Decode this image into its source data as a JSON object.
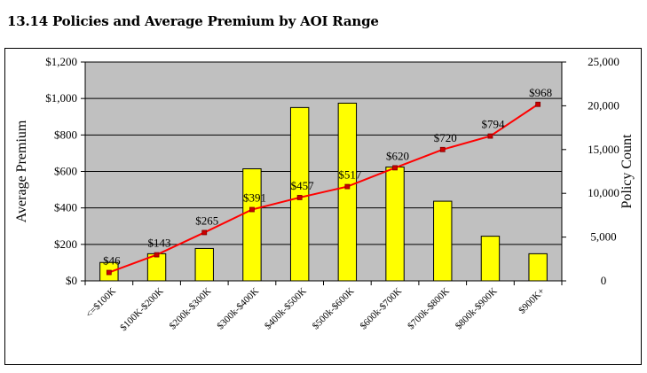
{
  "chart_data": {
    "type": "bar",
    "title": "13.14 Policies and Average Premium by AOI Range",
    "categories": [
      "<=$100K",
      "$100K-$200K",
      "$200k-$300K",
      "$300k-$400K",
      "$400k-$500K",
      "$500k-$600K",
      "$600k-$700K",
      "$700k-$800K",
      "$800k-$900K",
      "$900K+"
    ],
    "series": [
      {
        "name": "Policy Count",
        "type": "bar",
        "axis": "right",
        "color": "#ffff00",
        "values": [
          2100,
          3100,
          3700,
          12800,
          19800,
          20300,
          13000,
          9100,
          5100,
          3100
        ]
      },
      {
        "name": "Average Premium",
        "type": "line",
        "axis": "left",
        "color": "#ff0000",
        "values": [
          46,
          143,
          265,
          391,
          457,
          517,
          620,
          720,
          794,
          968
        ],
        "data_labels": [
          "$46",
          "$143",
          "$265",
          "$391",
          "$457",
          "$517",
          "$620",
          "$720",
          "$794",
          "$968"
        ]
      }
    ],
    "ylabel": "Average Premium",
    "y2label": "Policy Count",
    "ylim": [
      0,
      1200
    ],
    "y2lim": [
      0,
      25000
    ],
    "yticks": [
      "$0",
      "$200",
      "$400",
      "$600",
      "$800",
      "$1,000",
      "$1,200"
    ],
    "y2ticks": [
      "0",
      "5,000",
      "10,000",
      "15,000",
      "20,000",
      "25,000"
    ],
    "grid": true,
    "plot_background": "#c0c0c0",
    "legend": "none"
  }
}
